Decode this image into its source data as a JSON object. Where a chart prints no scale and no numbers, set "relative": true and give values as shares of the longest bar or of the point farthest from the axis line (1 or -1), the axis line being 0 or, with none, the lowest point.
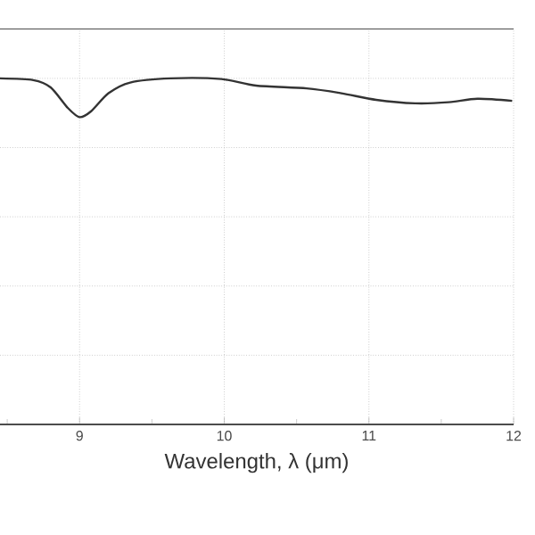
{
  "chart_data": {
    "type": "line",
    "xlabel": "Wavelength, λ (μm)",
    "relative": true,
    "grid": true,
    "xlim": [
      8.45,
      12
    ],
    "xticks": [
      {
        "value": 8.5,
        "label": null
      },
      9,
      {
        "value": 9.5,
        "label": null
      },
      10,
      {
        "value": 10.5,
        "label": null
      },
      11,
      {
        "value": 11.5,
        "label": null
      },
      12
    ],
    "series": [
      {
        "color": "#333333",
        "line_style": "solid",
        "x": [
          8.45,
          8.68,
          8.8,
          8.92,
          9.0,
          9.08,
          9.2,
          9.35,
          9.63,
          9.98,
          10.22,
          10.57,
          10.81,
          11.05,
          11.32,
          11.55,
          11.75,
          11.99
        ],
        "values": [
          1.0,
          0.995,
          0.974,
          0.914,
          0.888,
          0.905,
          0.957,
          0.988,
          1.0,
          0.998,
          0.979,
          0.971,
          0.957,
          0.938,
          0.928,
          0.931,
          0.941,
          0.935
        ]
      }
    ]
  }
}
